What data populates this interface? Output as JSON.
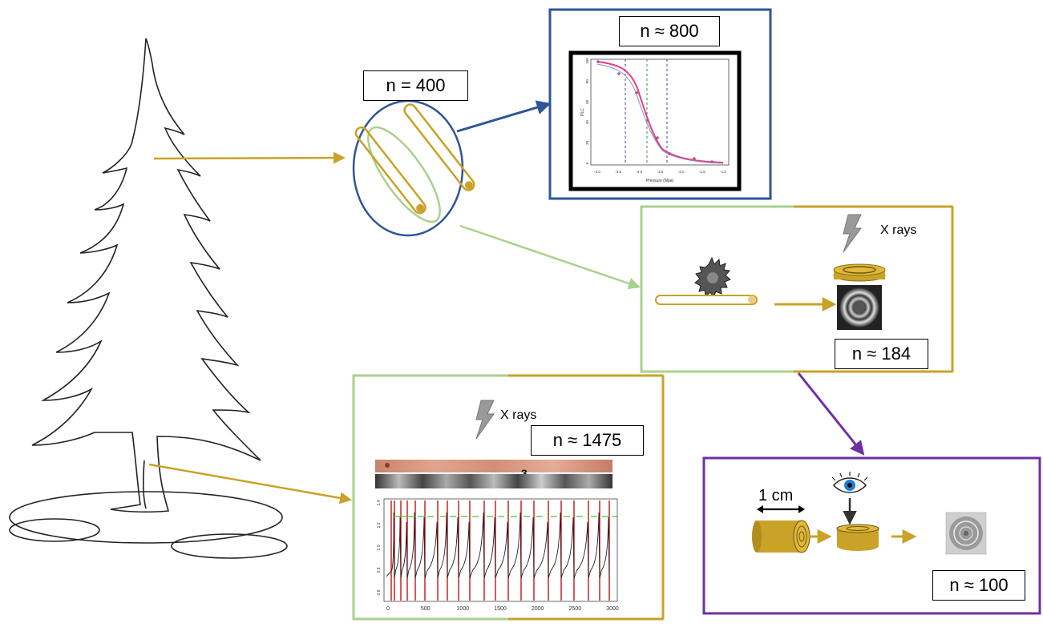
{
  "diagram": {
    "colors": {
      "wood": "#c9a227",
      "blue": "#2f5597",
      "green": "#a9d18e",
      "purple": "#7030a0",
      "red": "#c00000",
      "pink": "#e4417c",
      "gray": "#999999"
    },
    "icons": [
      "tree-outline",
      "wood-core-samples",
      "circular-saw-icon",
      "lightning-icon",
      "eye-icon",
      "x-ray-disc-image",
      "density-profile-chart"
    ],
    "labels": {
      "n_cores": "n = 400",
      "n_vulnerability": "n ≈ 800",
      "n_xray_disc": "n ≈ 184",
      "n_density": "n ≈ 1475",
      "n_visual": "n ≈ 100",
      "xrays_1": "X rays",
      "xrays_2": "X rays",
      "scale_1cm": "1 cm",
      "ring_number": "3"
    },
    "vulnerability_plot": {
      "ylabel": "PLC",
      "xlabel": "Pressure (Mpa)",
      "x_ticks": [
        "-4.0",
        "-3.5",
        "-3.0",
        "-2.5",
        "-2.0",
        "-1.5",
        "-1.0"
      ],
      "y_ticks": [
        "0",
        "20",
        "40",
        "60",
        "80",
        "100"
      ]
    },
    "density_plot": {
      "x_ticks": [
        "0",
        "500",
        "1000",
        "1500",
        "2000",
        "2500",
        "3000"
      ],
      "y_ticks": [
        "0.6",
        "0.8",
        "1.0",
        "1.2",
        "1.4"
      ]
    }
  }
}
